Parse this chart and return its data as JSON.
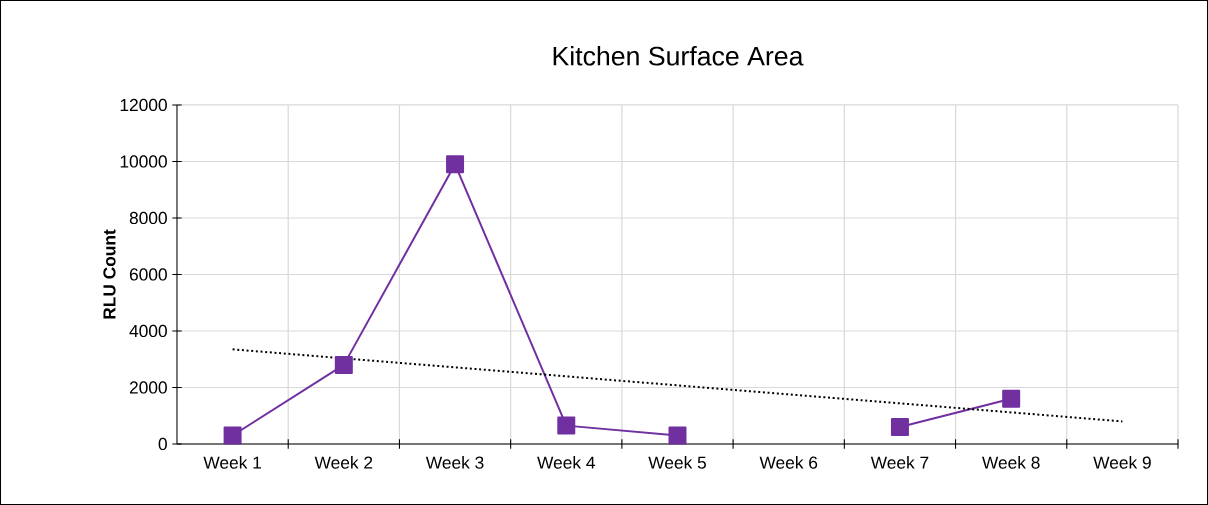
{
  "chart_data": {
    "type": "line",
    "title": "Kitchen Surface Area",
    "ylabel": "**RLU Count**",
    "categories": [
      "Week 1",
      "Week 2",
      "Week 3",
      "Week 4",
      "Week 5",
      "Week 6",
      "Week 7",
      "Week 8",
      "Week 9"
    ],
    "series": [
      {
        "color": "#7030a0",
        "marker": "square",
        "line_style": "solid",
        "values": [
          300,
          2800,
          9900,
          650,
          300,
          null,
          600,
          1600,
          null
        ]
      },
      {
        "color": "#000000",
        "marker": "none",
        "line_style": "dotted",
        "values": [
          3350,
          null,
          null,
          null,
          null,
          null,
          null,
          null,
          800
        ]
      }
    ],
    "ylim": [
      0,
      12000
    ],
    "yticks": [
      0,
      2000,
      4000,
      6000,
      8000,
      10000,
      12000
    ],
    "grid": true
  }
}
